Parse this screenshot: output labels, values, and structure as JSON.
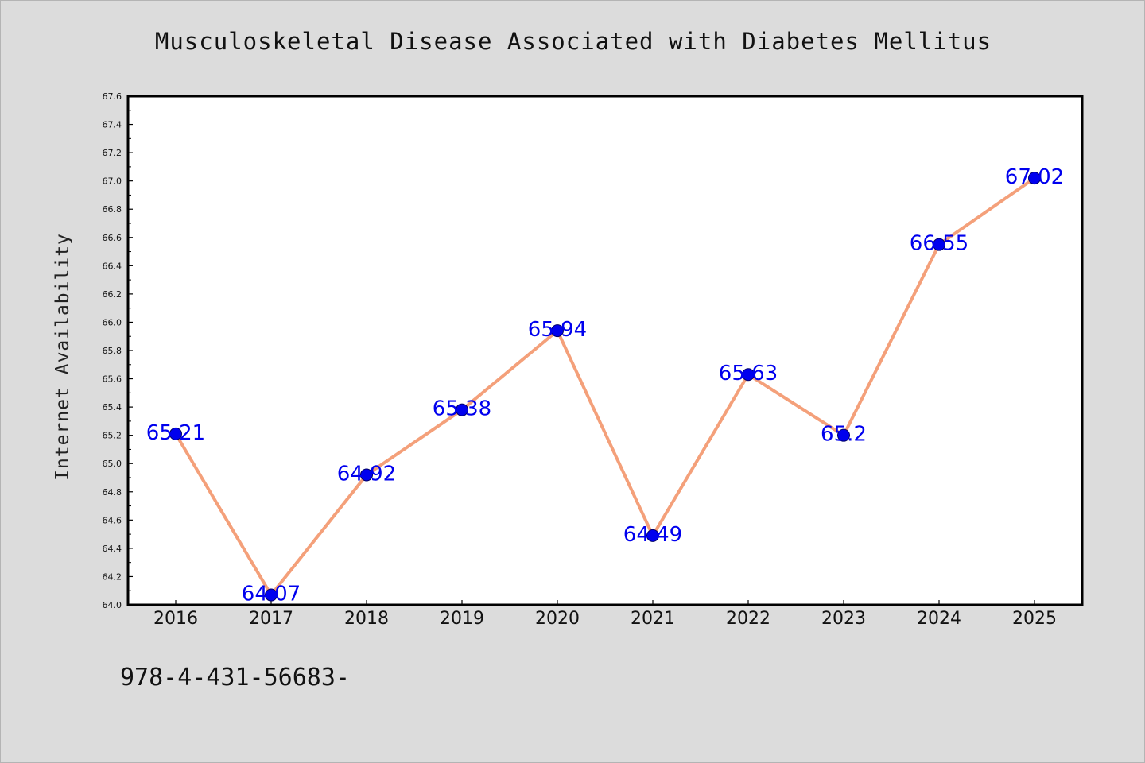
{
  "chart_data": {
    "type": "line",
    "title": "Musculoskeletal Disease Associated with Diabetes Mellitus",
    "xlabel": "",
    "ylabel": "Internet Availability",
    "categories": [
      "2016",
      "2017",
      "2018",
      "2019",
      "2020",
      "2021",
      "2022",
      "2023",
      "2024",
      "2025"
    ],
    "series": [
      {
        "values": [
          65.21,
          64.07,
          64.92,
          65.38,
          65.94,
          64.49,
          65.63,
          65.2,
          66.55,
          67.02
        ],
        "labels": [
          "65.21",
          "64.07",
          "64.92",
          "65.38",
          "65.94",
          "64.49",
          "65.63",
          "65.2",
          "66.55",
          "67.02"
        ],
        "line_color": "#f4a07a",
        "marker_color": "#0000ee",
        "label_color": "#0000ee"
      }
    ],
    "ylim": [
      64.0,
      67.6
    ],
    "yticks": [
      "64.0",
      "64.2",
      "64.4",
      "64.6",
      "64.8",
      "65.0",
      "65.2",
      "65.4",
      "65.6",
      "65.8",
      "66.0",
      "66.2",
      "66.4",
      "66.6",
      "66.8",
      "67.0",
      "67.2",
      "67.4",
      "67.6"
    ],
    "grid": false,
    "legend": "none"
  },
  "footer": {
    "code": "978-4-431-56683-"
  }
}
